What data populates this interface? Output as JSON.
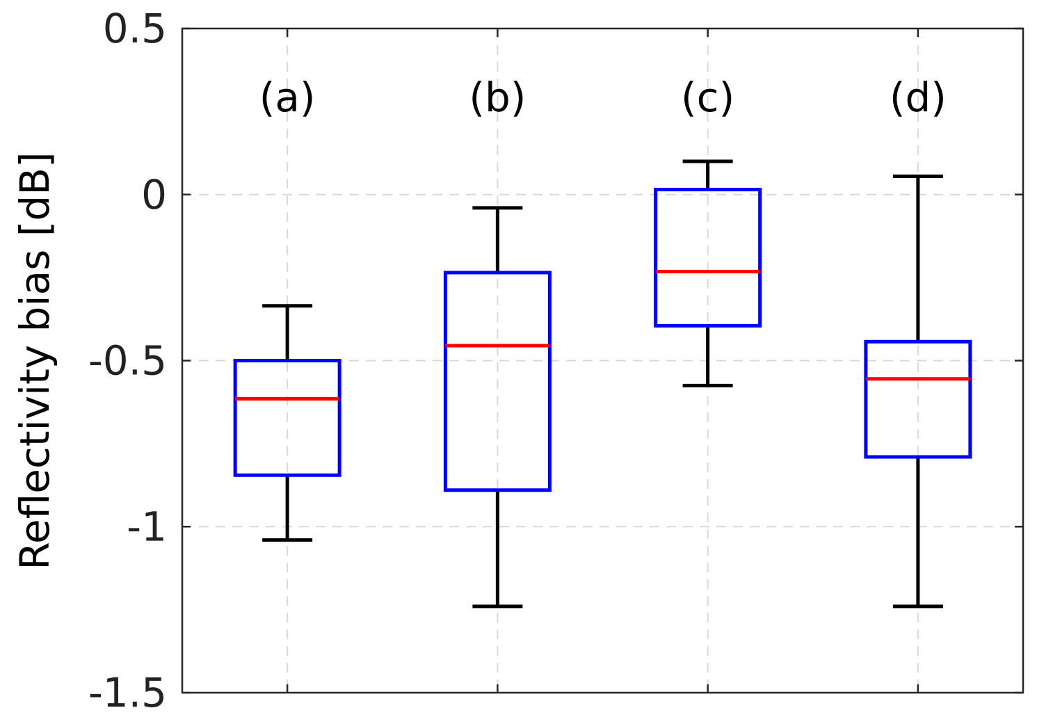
{
  "chart_data": {
    "type": "box",
    "ylabel": "Reflectivity bias [dB]",
    "ylim": [
      -1.5,
      0.5
    ],
    "yticks": [
      0.5,
      0,
      -0.5,
      -1,
      -1.5
    ],
    "ytick_labels": [
      "0.5",
      "0",
      "-0.5",
      "-1",
      "-1.5"
    ],
    "grid": true,
    "boxes": [
      {
        "label": "(a)",
        "whisker_low": -1.04,
        "q1": -0.845,
        "median": -0.615,
        "q3": -0.5,
        "whisker_high": -0.335
      },
      {
        "label": "(b)",
        "whisker_low": -1.24,
        "q1": -0.89,
        "median": -0.455,
        "q3": -0.235,
        "whisker_high": -0.04
      },
      {
        "label": "(c)",
        "whisker_low": -0.575,
        "q1": -0.395,
        "median": -0.232,
        "q3": 0.015,
        "whisker_high": 0.1
      },
      {
        "label": "(d)",
        "whisker_low": -1.24,
        "q1": -0.79,
        "median": -0.555,
        "q3": -0.443,
        "whisker_high": 0.055
      }
    ],
    "colors": {
      "box": "#0000ff",
      "median": "#ff0000",
      "whisker": "#000000",
      "grid": "#d9d9d9",
      "axis": "#262626"
    }
  }
}
